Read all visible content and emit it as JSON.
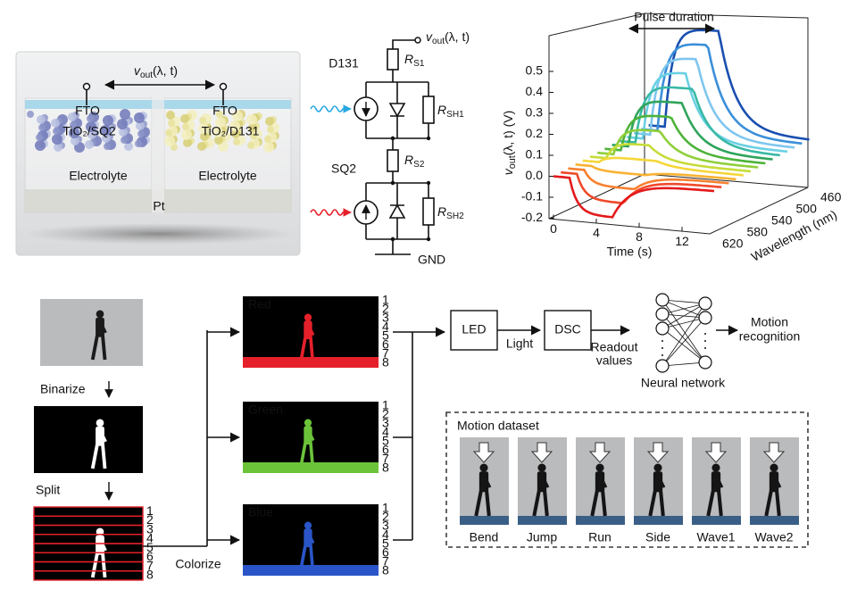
{
  "cell": {
    "vout": {
      "v": "v",
      "sub": "out",
      "args": "(λ, t)"
    },
    "fto_left": "FTO",
    "fto_right": "FTO",
    "tio2_left": "TiO₂/SQ2",
    "tio2_right": "TiO₂/D131",
    "electrolyte_left": "Electrolyte",
    "electrolyte_right": "Electrolyte",
    "pt": "Pt"
  },
  "circuit": {
    "vout": {
      "v": "v",
      "sub": "out",
      "args": "(λ, t)"
    },
    "dye_top": "D131",
    "dye_bottom": "SQ2",
    "r_s1": {
      "symbol": "R",
      "sub": "S1"
    },
    "r_sh1": {
      "symbol": "R",
      "sub": "SH1"
    },
    "r_s2": {
      "symbol": "R",
      "sub": "S2"
    },
    "r_sh2": {
      "symbol": "R",
      "sub": "SH2"
    },
    "ground": "GND"
  },
  "plot": {
    "pulse_label": "Pulse duration",
    "y_label": {
      "v": "v",
      "sub": "out",
      "args": "(λ, t) (V)"
    },
    "y_ticks": [
      "0.5",
      "0.4",
      "0.3",
      "0.2",
      "0.1",
      "0.0",
      "-0.1",
      "-0.2"
    ],
    "time_label": "Time (s)",
    "time_ticks": [
      "0",
      "4",
      "8",
      "12"
    ],
    "wavelength_label": "Wavelength (nm)",
    "wavelength_ticks": [
      "460",
      "500",
      "540",
      "580",
      "620"
    ]
  },
  "pipeline": {
    "binarize": "Binarize",
    "split": "Split",
    "colorize": "Colorize",
    "channels": [
      "Red",
      "Green",
      "Blue"
    ],
    "row_numbers": [
      "1",
      "2",
      "3",
      "4",
      "5",
      "6",
      "7",
      "8"
    ],
    "led": "LED",
    "light": "Light",
    "dsc": "DSC",
    "readout": [
      "Readout",
      "values"
    ],
    "neural_network": "Neural network",
    "recognition": [
      "Motion",
      "recognition"
    ]
  },
  "dataset": {
    "title": "Motion dataset",
    "motions": [
      "Bend",
      "Jump",
      "Run",
      "Side",
      "Wave1",
      "Wave2"
    ]
  }
}
